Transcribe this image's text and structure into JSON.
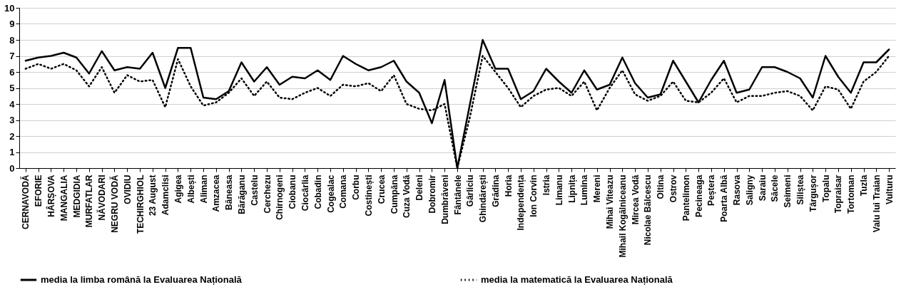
{
  "chart_data": {
    "type": "line",
    "categories": [
      "CERNAVODĂ",
      "EFORIE",
      "HÂRȘOVA",
      "MANGALIA",
      "MEDGIDIA",
      "MURFATLAR",
      "NĂVODARI",
      "NEGRU VODĂ",
      "OVIDIU",
      "TECHIRGHIOL",
      "23 August",
      "Adamclisi",
      "Agigea",
      "Albești",
      "Aliman",
      "Amzacea",
      "Băneasa",
      "Bărăganu",
      "Castelu",
      "Cerchezu",
      "Chirnogeni",
      "Ciobanu",
      "Ciocârlia",
      "Cobadin",
      "Cogealac",
      "Comana",
      "Corbu",
      "Costinești",
      "Crucea",
      "Cumpăna",
      "Cuza Vodă",
      "Deleni",
      "Dobromir",
      "Dumbrăveni",
      "Fântânele",
      "Gârliciu",
      "Ghindărești",
      "Grădina",
      "Horia",
      "Independența",
      "Ion Corvin",
      "Istria",
      "Limanu",
      "Lipnița",
      "Lumina",
      "Mereni",
      "Mihai Viteazu",
      "Mihail Kogălniceanu",
      "Mircea Vodă",
      "Nicolae Bălcescu",
      "Oltina",
      "Ostrov",
      "Pantelimon",
      "Pecineaga",
      "Peștera",
      "Poarta Albă",
      "Rasova",
      "Saligny",
      "Saraiu",
      "Săcele",
      "Seimeni",
      "Siliștea",
      "Târgușor",
      "Topalu",
      "Topraisar",
      "Tortoman",
      "Tuzla",
      "Valu lui Traian",
      "Vulturu"
    ],
    "series": [
      {
        "name": "media la limba română la Evaluarea Națională",
        "color": "#000000",
        "line_style": "solid",
        "values": [
          6.7,
          6.9,
          7.0,
          7.2,
          6.9,
          5.9,
          7.3,
          6.1,
          6.3,
          6.2,
          7.2,
          5.0,
          7.5,
          7.5,
          4.4,
          4.3,
          4.8,
          6.6,
          5.4,
          6.3,
          5.2,
          5.7,
          5.6,
          6.1,
          5.5,
          7.0,
          6.5,
          6.1,
          6.3,
          6.7,
          5.4,
          4.7,
          2.8,
          5.5,
          0,
          4.0,
          8.0,
          6.2,
          6.2,
          4.3,
          4.8,
          6.2,
          5.4,
          4.7,
          6.1,
          4.9,
          5.2,
          6.9,
          5.3,
          4.4,
          4.6,
          6.7,
          5.4,
          4.1,
          5.5,
          6.7,
          4.7,
          4.9,
          6.3,
          6.3,
          6.0,
          5.6,
          4.4,
          7.0,
          5.7,
          4.7,
          6.6,
          6.6,
          7.4
        ]
      },
      {
        "name": "media la matematică la Evaluarea Națională",
        "color": "#000000",
        "line_style": "dotted",
        "values": [
          6.2,
          6.5,
          6.2,
          6.5,
          6.1,
          5.1,
          6.3,
          4.7,
          5.8,
          5.4,
          5.5,
          3.8,
          6.8,
          5.1,
          3.9,
          4.1,
          4.7,
          5.6,
          4.5,
          5.4,
          4.4,
          4.3,
          4.7,
          5.0,
          4.5,
          5.2,
          5.1,
          5.3,
          4.8,
          5.8,
          4.0,
          3.7,
          3.6,
          4.0,
          0,
          3.2,
          7.0,
          6.0,
          5.0,
          3.8,
          4.5,
          4.9,
          5.0,
          4.5,
          5.4,
          3.6,
          5.0,
          6.1,
          4.6,
          4.2,
          4.5,
          5.4,
          4.2,
          4.1,
          4.7,
          5.6,
          4.1,
          4.5,
          4.5,
          4.7,
          4.8,
          4.5,
          3.6,
          5.1,
          4.9,
          3.7,
          5.4,
          6.0,
          7.0
        ]
      }
    ],
    "ylim": [
      0,
      10
    ],
    "yticks": [
      0,
      1,
      2,
      3,
      4,
      5,
      6,
      7,
      8,
      9,
      10
    ],
    "grid": "y",
    "legend": "bottom",
    "marker": "none"
  }
}
